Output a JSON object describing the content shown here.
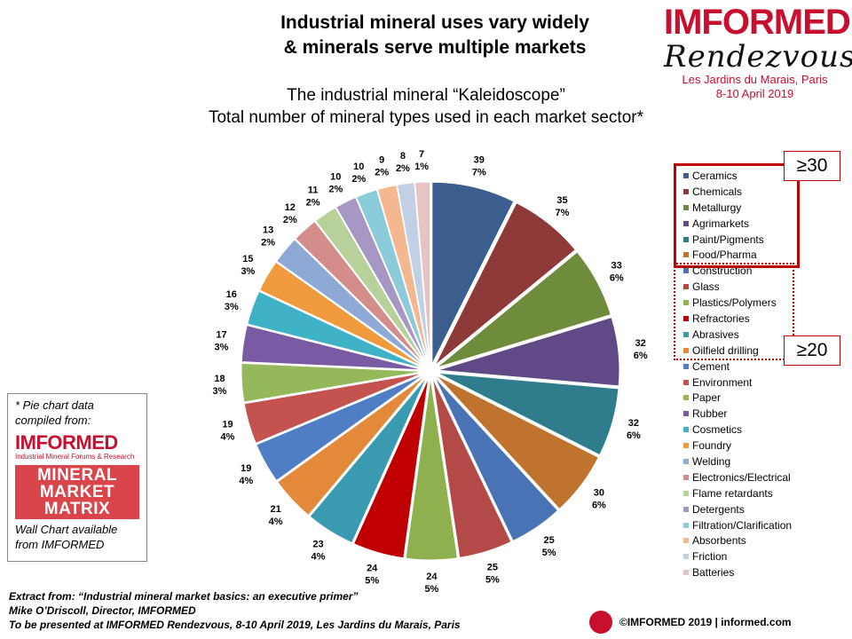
{
  "header": {
    "title_line1": "Industrial mineral uses vary widely",
    "title_line2": "& minerals serve multiple markets",
    "subtitle_line1": "The industrial mineral “Kaleidoscope”",
    "subtitle_line2": "Total number  of mineral types used in each market sector*"
  },
  "brand": {
    "logo": "IMFORMED",
    "script": "Rendezvous",
    "venue_line1": "Les Jardins du Marais, Paris",
    "venue_line2": "8-10 April 2019"
  },
  "badges": {
    "b30": "≥30",
    "b20": "≥20"
  },
  "sidebox": {
    "note": "* Pie chart data compiled from:",
    "logo": "IMFORMED",
    "logo_sub": "Industrial Mineral Forums & Research",
    "matrix": [
      "MINERAL",
      "MARKET",
      "MATRIX"
    ],
    "wall": "Wall Chart available from IMFORMED"
  },
  "footer": {
    "line1": "Extract from: “Industrial mineral market basics: an executive primer”",
    "line2": "Mike O’Driscoll, Director, IMFORMED",
    "line3": "To be presented at IMFORMED  Rendezvous,  8-10 April 2019, Les Jardins du Marais,  Paris"
  },
  "copyright": "©IMFORMED 2019  | informed.com",
  "chart_data": {
    "type": "pie",
    "title": "",
    "categories": [
      "Ceramics",
      "Chemicals",
      "Metallurgy",
      "Agrimarkets",
      "Paint/Pigments",
      "Food/Pharma",
      "Construction",
      "Glass",
      "Plastics/Polymers",
      "Refractories",
      "Abrasives",
      "Oilfield drilling",
      "Cement",
      "Environment",
      "Paper",
      "Rubber",
      "Cosmetics",
      "Foundry",
      "Welding",
      "Electronics/Electrical",
      "Flame retardants",
      "Detergents",
      "Filtration/Clarification",
      "Absorbents",
      "Friction",
      "Batteries"
    ],
    "values": [
      39,
      35,
      33,
      32,
      32,
      30,
      25,
      25,
      24,
      24,
      23,
      21,
      19,
      19,
      18,
      17,
      16,
      15,
      13,
      12,
      11,
      10,
      10,
      9,
      8,
      7
    ],
    "percent_labels": [
      "7%",
      "7%",
      "6%",
      "6%",
      "6%",
      "6%",
      "5%",
      "5%",
      "5%",
      "5%",
      "4%",
      "4%",
      "4%",
      "4%",
      "3%",
      "3%",
      "3%",
      "3%",
      "2%",
      "2%",
      "2%",
      "2%",
      "2%",
      "2%",
      "2%",
      "1%"
    ],
    "colors": [
      "#3b5e8e",
      "#8e3a38",
      "#6f8b3c",
      "#5f4a85",
      "#2f7d8c",
      "#c0732e",
      "#4a73b5",
      "#b34a47",
      "#8fb04f",
      "#c00000",
      "#3a9bb0",
      "#e3893a",
      "#4f7ec4",
      "#c4524f",
      "#94b85a",
      "#7a5aa3",
      "#3fb2c8",
      "#f09a3e",
      "#8ea9d6",
      "#d38e8c",
      "#b8d09a",
      "#a797c4",
      "#8ccbd9",
      "#f5b790",
      "#c2d0e6",
      "#e7c3c2"
    ],
    "legend_position": "right",
    "legend_groups": [
      {
        "label": "≥30",
        "first": 0,
        "last": 5
      },
      {
        "label": "≥20",
        "first": 6,
        "last": 11
      }
    ]
  }
}
